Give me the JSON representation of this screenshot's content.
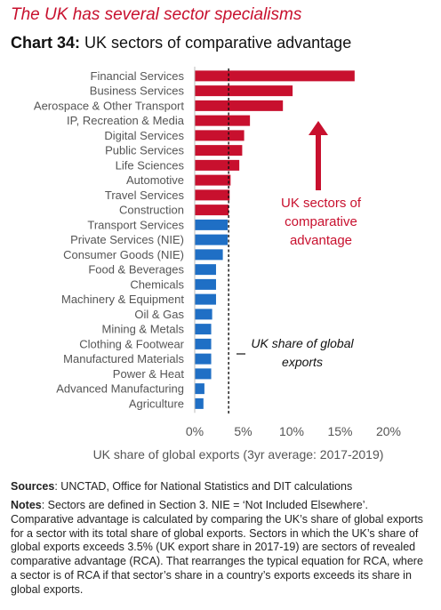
{
  "headline": "The UK has several sector specialisms",
  "chart_title": {
    "prefix": "Chart 34:",
    "text": "UK sectors of comparative advantage"
  },
  "chart_data": {
    "type": "bar",
    "orientation": "horizontal",
    "categories": [
      "Financial Services",
      "Business Services",
      "Aerospace & Other Transport",
      "IP, Recreation & Media",
      "Digital Services",
      "Public Services",
      "Life Sciences",
      "Automotive",
      "Travel Services",
      "Construction",
      "Transport Services",
      "Private Services (NIE)",
      "Consumer Goods (NIE)",
      "Food & Beverages",
      "Chemicals",
      "Machinery & Equipment",
      "Oil & Gas",
      "Mining & Metals",
      "Clothing & Footwear",
      "Manufactured Materials",
      "Power & Heat",
      "Advanced Manufacturing",
      "Agriculture"
    ],
    "values": [
      16.5,
      10.1,
      9.1,
      5.7,
      5.1,
      4.9,
      4.6,
      3.7,
      3.6,
      3.5,
      3.4,
      3.4,
      2.9,
      2.2,
      2.2,
      2.2,
      1.8,
      1.7,
      1.7,
      1.7,
      1.7,
      1.0,
      0.9
    ],
    "bar_colors": [
      "#c8102e",
      "#c8102e",
      "#c8102e",
      "#c8102e",
      "#c8102e",
      "#c8102e",
      "#c8102e",
      "#c8102e",
      "#c8102e",
      "#c8102e",
      "#1f6fc5",
      "#1f6fc5",
      "#1f6fc5",
      "#1f6fc5",
      "#1f6fc5",
      "#1f6fc5",
      "#1f6fc5",
      "#1f6fc5",
      "#1f6fc5",
      "#1f6fc5",
      "#1f6fc5",
      "#1f6fc5",
      "#1f6fc5"
    ],
    "xlabel": "UK share of global exports (3yr average: 2017-2019)",
    "ylabel": "",
    "xlim": [
      0,
      20
    ],
    "xticks": [
      "0%",
      "5%",
      "10%",
      "15%",
      "20%"
    ],
    "reference_line": {
      "value": 3.5,
      "label": "UK share of global exports",
      "style": "dashed"
    },
    "annotation": "UK sectors of comparative advantage",
    "grid": false
  },
  "colors": {
    "red": "#c8102e",
    "blue": "#1f6fc5"
  },
  "sources": {
    "label": "Sources",
    "text": ": UNCTAD, Office for National Statistics and DIT calculations"
  },
  "notes": {
    "label": "Notes",
    "text": ": Sectors are defined in Section 3.  NIE = ‘Not Included Elsewhere’. Comparative advantage is calculated by comparing the UK’s share of global exports for a sector with its total share of global exports. Sectors in which the UK’s share of global exports exceeds 3.5% (UK export share in 2017-19) are sectors of revealed comparative advantage (RCA). That rearranges the typical equation for RCA, where a sector is of RCA if that sector’s share in a country’s exports exceeds its share in global exports."
  }
}
